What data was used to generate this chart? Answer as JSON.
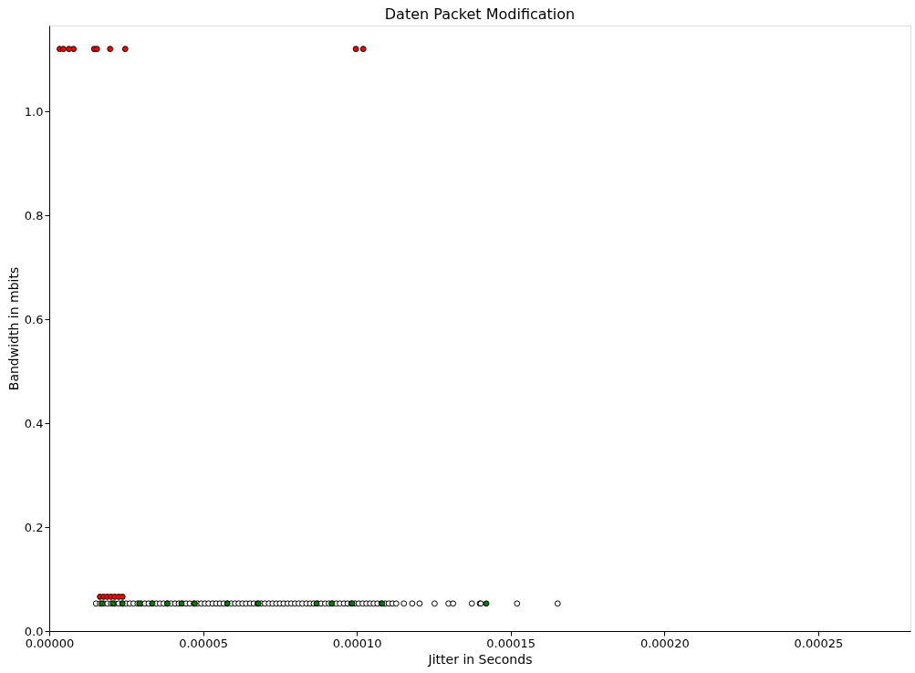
{
  "chart_data": {
    "type": "scatter",
    "title": "Daten Packet Modification",
    "xlabel": "Jitter in Seconds",
    "ylabel": "Bandwidth in mbits",
    "xlim": [
      0,
      0.00028
    ],
    "ylim": [
      0,
      1.165
    ],
    "xticks": [
      {
        "value": 0,
        "label": "0.00000"
      },
      {
        "value": 5e-05,
        "label": "0.00005"
      },
      {
        "value": 0.0001,
        "label": "0.00010"
      },
      {
        "value": 0.00015,
        "label": "0.00015"
      },
      {
        "value": 0.0002,
        "label": "0.00020"
      },
      {
        "value": 0.00025,
        "label": "0.00025"
      }
    ],
    "yticks": [
      {
        "value": 0,
        "label": "0.0"
      },
      {
        "value": 0.2,
        "label": "0.2"
      },
      {
        "value": 0.4,
        "label": "0.4"
      },
      {
        "value": 0.6,
        "label": "0.6"
      },
      {
        "value": 0.8,
        "label": "0.8"
      },
      {
        "value": 1.0,
        "label": "1.0"
      }
    ],
    "grid": false,
    "marker": "circle",
    "series": [
      {
        "color": "#ffffff",
        "x": [
          1.52e-05,
          1.65e-05,
          1.77e-05,
          1.89e-05,
          2.01e-05,
          2.13e-05,
          2.26e-05,
          2.38e-05,
          2.5e-05,
          2.62e-05,
          2.74e-05,
          2.87e-05,
          2.99e-05,
          3.11e-05,
          3.23e-05,
          3.35e-05,
          3.48e-05,
          3.6e-05,
          3.72e-05,
          3.84e-05,
          3.96e-05,
          4.09e-05,
          4.21e-05,
          4.33e-05,
          4.45e-05,
          4.57e-05,
          4.7e-05,
          4.82e-05,
          4.94e-05,
          5.06e-05,
          5.18e-05,
          5.31e-05,
          5.43e-05,
          5.55e-05,
          5.67e-05,
          5.79e-05,
          5.92e-05,
          6.04e-05,
          6.16e-05,
          6.28e-05,
          6.4e-05,
          6.53e-05,
          6.65e-05,
          6.77e-05,
          6.89e-05,
          7.01e-05,
          7.14e-05,
          7.26e-05,
          7.38e-05,
          7.5e-05,
          7.62e-05,
          7.75e-05,
          7.87e-05,
          7.99e-05,
          8.11e-05,
          8.23e-05,
          8.36e-05,
          8.48e-05,
          8.6e-05,
          8.72e-05,
          8.84e-05,
          8.97e-05,
          9.09e-05,
          9.21e-05,
          9.33e-05,
          9.45e-05,
          9.58e-05,
          9.7e-05,
          9.82e-05,
          9.94e-05,
          0.0001006,
          0.0001019,
          0.0001031,
          0.0001043,
          0.0001055,
          0.0001067,
          0.000108,
          0.0001092,
          0.0001104,
          0.0001116,
          0.0001128,
          0.0001153,
          0.000118,
          0.0001204,
          0.0001253,
          0.0001298,
          0.0001313,
          0.0001374,
          0.00014,
          0.0001403,
          0.0001521,
          0.0001653
        ],
        "values": [
          0.053,
          0.053,
          0.053,
          0.053,
          0.053,
          0.053,
          0.053,
          0.053,
          0.053,
          0.053,
          0.053,
          0.053,
          0.053,
          0.053,
          0.053,
          0.053,
          0.053,
          0.053,
          0.053,
          0.053,
          0.053,
          0.053,
          0.053,
          0.053,
          0.053,
          0.053,
          0.053,
          0.053,
          0.053,
          0.053,
          0.053,
          0.053,
          0.053,
          0.053,
          0.053,
          0.053,
          0.053,
          0.053,
          0.053,
          0.053,
          0.053,
          0.053,
          0.053,
          0.053,
          0.053,
          0.053,
          0.053,
          0.053,
          0.053,
          0.053,
          0.053,
          0.053,
          0.053,
          0.053,
          0.053,
          0.053,
          0.053,
          0.053,
          0.053,
          0.053,
          0.053,
          0.053,
          0.053,
          0.053,
          0.053,
          0.053,
          0.053,
          0.053,
          0.053,
          0.053,
          0.053,
          0.053,
          0.053,
          0.053,
          0.053,
          0.053,
          0.053,
          0.053,
          0.053,
          0.053,
          0.053,
          0.053,
          0.053,
          0.053,
          0.053,
          0.053,
          0.053,
          0.053,
          0.053,
          0.053,
          0.053,
          0.053
        ]
      },
      {
        "color": "#008000",
        "x": [
          1.71e-05,
          2.07e-05,
          2.38e-05,
          2.93e-05,
          3.35e-05,
          3.84e-05,
          4.3e-05,
          4.73e-05,
          5.79e-05,
          6.8e-05,
          8.69e-05,
          9.18e-05,
          9.85e-05,
          0.0001082,
          0.0001421
        ],
        "values": [
          0.053,
          0.053,
          0.053,
          0.053,
          0.053,
          0.053,
          0.053,
          0.053,
          0.053,
          0.053,
          0.053,
          0.053,
          0.053,
          0.053,
          0.053
        ]
      },
      {
        "color": "#ff0000",
        "x": [
          1.65e-05,
          1.77e-05,
          1.89e-05,
          2.01e-05,
          2.13e-05,
          2.26e-05,
          2.38e-05,
          3.4e-06,
          4.6e-06,
          6.4e-06,
          7.9e-06,
          1.46e-05,
          1.55e-05,
          1.98e-05,
          2.47e-05,
          9.97e-05,
          0.0001021
        ],
        "values": [
          0.066,
          0.066,
          0.066,
          0.066,
          0.066,
          0.066,
          0.066,
          1.12,
          1.12,
          1.12,
          1.12,
          1.12,
          1.12,
          1.12,
          1.12,
          1.12,
          1.12
        ]
      }
    ]
  }
}
